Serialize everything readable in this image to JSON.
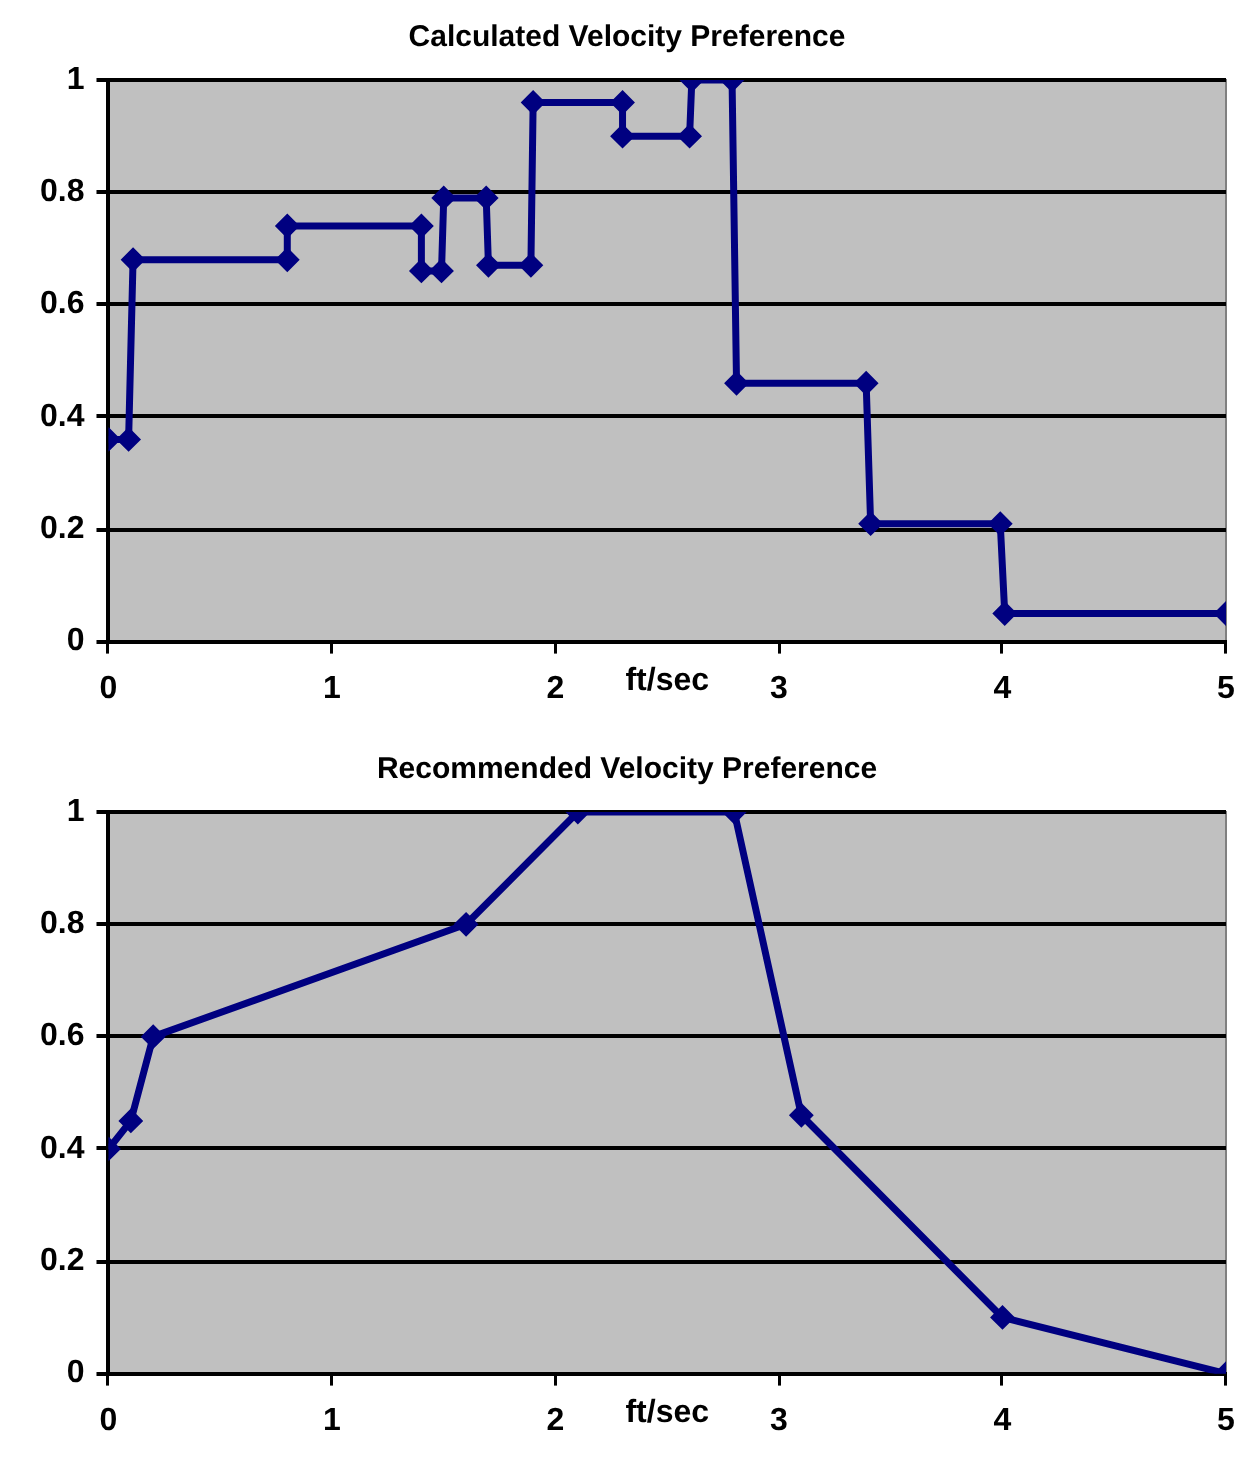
{
  "chart_data": [
    {
      "type": "line",
      "title": "Calculated Velocity Preference",
      "xlabel": "ft/sec",
      "x": [
        0,
        0.09,
        0.11,
        0.8,
        0.8,
        1.4,
        1.4,
        1.49,
        1.5,
        1.69,
        1.7,
        1.89,
        1.9,
        2.3,
        2.3,
        2.6,
        2.61,
        2.79,
        2.81,
        3.39,
        3.41,
        3.99,
        4.01,
        5
      ],
      "series": [
        {
          "color": "#000080",
          "values": [
            0.36,
            0.36,
            0.68,
            0.68,
            0.74,
            0.74,
            0.66,
            0.66,
            0.79,
            0.79,
            0.67,
            0.67,
            0.96,
            0.96,
            0.9,
            0.9,
            1,
            1,
            0.46,
            0.46,
            0.21,
            0.21,
            0.05,
            0.05
          ]
        }
      ],
      "xlim": [
        0,
        5
      ],
      "xticks": [
        0,
        1,
        2,
        3,
        4,
        5
      ],
      "ylim": [
        0,
        1
      ],
      "yticks": [
        0,
        0.2,
        0.4,
        0.6,
        0.8,
        1
      ],
      "grid": "y",
      "marker": "diamond",
      "line_style": "solid"
    },
    {
      "type": "line",
      "title": "Recommended Velocity Preference",
      "xlabel": "ft/sec",
      "x": [
        0,
        0.1,
        0.2,
        1.6,
        2.1,
        2.8,
        3.1,
        4,
        5
      ],
      "series": [
        {
          "color": "#000080",
          "values": [
            0.4,
            0.45,
            0.6,
            0.8,
            1,
            1,
            0.46,
            0.1,
            0
          ]
        }
      ],
      "xlim": [
        0,
        5
      ],
      "xticks": [
        0,
        1,
        2,
        3,
        4,
        5
      ],
      "ylim": [
        0,
        1
      ],
      "yticks": [
        0,
        0.2,
        0.4,
        0.6,
        0.8,
        1
      ],
      "grid": "y",
      "marker": "diamond",
      "line_style": "solid"
    }
  ]
}
